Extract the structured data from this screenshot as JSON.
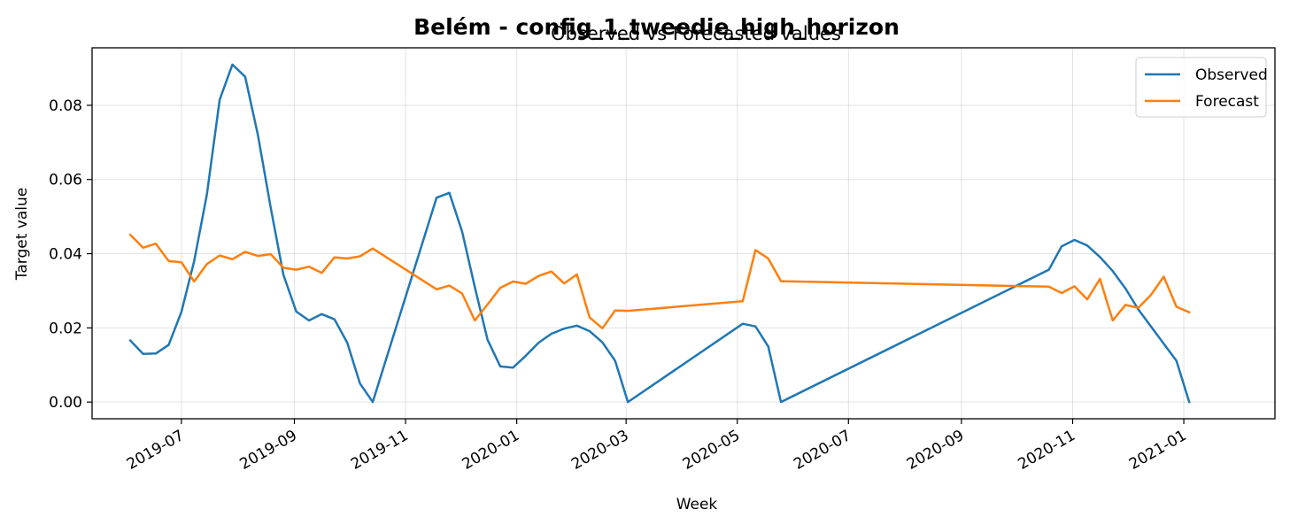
{
  "chart_data": {
    "type": "line",
    "suptitle": "Belém - config_1_tweedie_high_horizon",
    "title": "Observed vs Forecasted values",
    "xlabel": "Week",
    "ylabel": "Target value",
    "ylim": [
      -0.0045,
      0.0955
    ],
    "xlim": [
      "2019-05-13",
      "2021-02-20"
    ],
    "grid": true,
    "legend_position": "top-right",
    "x_ticks": [
      "2019-07-01",
      "2019-09-01",
      "2019-11-01",
      "2020-01-01",
      "2020-03-01",
      "2020-05-01",
      "2020-07-01",
      "2020-09-01",
      "2020-11-01",
      "2021-01-01"
    ],
    "x_tick_labels": [
      "2019-07",
      "2019-09",
      "2019-11",
      "2020-01",
      "2020-03",
      "2020-05",
      "2020-07",
      "2020-09",
      "2020-11",
      "2021-01"
    ],
    "y_ticks": [
      0.0,
      0.02,
      0.04,
      0.06,
      0.08
    ],
    "y_tick_labels": [
      "0.00",
      "0.02",
      "0.04",
      "0.06",
      "0.08"
    ],
    "series": [
      {
        "name": "Observed",
        "color": "#1f77b4",
        "points": [
          [
            "2019-06-03",
            0.0166
          ],
          [
            "2019-06-10",
            0.013
          ],
          [
            "2019-06-17",
            0.0131
          ],
          [
            "2019-06-24",
            0.0154
          ],
          [
            "2019-07-01",
            0.0243
          ],
          [
            "2019-07-08",
            0.038
          ],
          [
            "2019-07-15",
            0.056
          ],
          [
            "2019-07-22",
            0.0815
          ],
          [
            "2019-07-29",
            0.091
          ],
          [
            "2019-08-05",
            0.0877
          ],
          [
            "2019-08-12",
            0.072
          ],
          [
            "2019-08-19",
            0.0525
          ],
          [
            "2019-08-26",
            0.0343
          ],
          [
            "2019-09-02",
            0.0244
          ],
          [
            "2019-09-09",
            0.022
          ],
          [
            "2019-09-16",
            0.0237
          ],
          [
            "2019-09-23",
            0.0223
          ],
          [
            "2019-09-30",
            0.016
          ],
          [
            "2019-10-07",
            0.005
          ],
          [
            "2019-10-14",
            0.0
          ],
          [
            "2019-11-18",
            0.0551
          ],
          [
            "2019-11-25",
            0.0564
          ],
          [
            "2019-12-02",
            0.046
          ],
          [
            "2019-12-09",
            0.031
          ],
          [
            "2019-12-16",
            0.0168
          ],
          [
            "2019-12-23",
            0.0096
          ],
          [
            "2019-12-30",
            0.0093
          ],
          [
            "2020-01-06",
            0.0125
          ],
          [
            "2020-01-13",
            0.016
          ],
          [
            "2020-01-20",
            0.0184
          ],
          [
            "2020-01-27",
            0.0198
          ],
          [
            "2020-02-03",
            0.0206
          ],
          [
            "2020-02-10",
            0.0191
          ],
          [
            "2020-02-17",
            0.0161
          ],
          [
            "2020-02-24",
            0.0111
          ],
          [
            "2020-03-02",
            0.0
          ],
          [
            "2020-05-04",
            0.0211
          ],
          [
            "2020-05-11",
            0.0204
          ],
          [
            "2020-05-18",
            0.015
          ],
          [
            "2020-05-25",
            0.0
          ],
          [
            "2020-10-19",
            0.0357
          ],
          [
            "2020-10-26",
            0.042
          ],
          [
            "2020-11-02",
            0.0437
          ],
          [
            "2020-11-09",
            0.0422
          ],
          [
            "2020-11-16",
            0.0391
          ],
          [
            "2020-11-23",
            0.0353
          ],
          [
            "2020-11-30",
            0.0306
          ],
          [
            "2020-12-07",
            0.025
          ],
          [
            "2020-12-28",
            0.0111
          ],
          [
            "2021-01-04",
            0.0
          ]
        ]
      },
      {
        "name": "Forecast",
        "color": "#ff7f0e",
        "points": [
          [
            "2019-06-03",
            0.0451
          ],
          [
            "2019-06-10",
            0.0416
          ],
          [
            "2019-06-17",
            0.0427
          ],
          [
            "2019-06-24",
            0.038
          ],
          [
            "2019-07-01",
            0.0377
          ],
          [
            "2019-07-08",
            0.0325
          ],
          [
            "2019-07-15",
            0.0372
          ],
          [
            "2019-07-22",
            0.0395
          ],
          [
            "2019-07-29",
            0.0385
          ],
          [
            "2019-08-05",
            0.0405
          ],
          [
            "2019-08-12",
            0.0394
          ],
          [
            "2019-08-19",
            0.0399
          ],
          [
            "2019-08-26",
            0.0362
          ],
          [
            "2019-09-02",
            0.0357
          ],
          [
            "2019-09-09",
            0.0365
          ],
          [
            "2019-09-16",
            0.0348
          ],
          [
            "2019-09-23",
            0.039
          ],
          [
            "2019-09-30",
            0.0387
          ],
          [
            "2019-10-07",
            0.0393
          ],
          [
            "2019-10-14",
            0.0414
          ],
          [
            "2019-11-18",
            0.0304
          ],
          [
            "2019-11-25",
            0.0314
          ],
          [
            "2019-12-02",
            0.0293
          ],
          [
            "2019-12-09",
            0.022
          ],
          [
            "2019-12-16",
            0.0263
          ],
          [
            "2019-12-23",
            0.0308
          ],
          [
            "2019-12-30",
            0.0325
          ],
          [
            "2020-01-06",
            0.0319
          ],
          [
            "2020-01-13",
            0.034
          ],
          [
            "2020-01-20",
            0.0352
          ],
          [
            "2020-01-27",
            0.032
          ],
          [
            "2020-02-03",
            0.0344
          ],
          [
            "2020-02-10",
            0.0228
          ],
          [
            "2020-02-17",
            0.0199
          ],
          [
            "2020-02-24",
            0.0247
          ],
          [
            "2020-03-02",
            0.0246
          ],
          [
            "2020-05-04",
            0.0272
          ],
          [
            "2020-05-11",
            0.041
          ],
          [
            "2020-05-18",
            0.0387
          ],
          [
            "2020-05-25",
            0.0326
          ],
          [
            "2020-10-19",
            0.0311
          ],
          [
            "2020-10-26",
            0.0294
          ],
          [
            "2020-11-02",
            0.0312
          ],
          [
            "2020-11-09",
            0.0277
          ],
          [
            "2020-11-16",
            0.0332
          ],
          [
            "2020-11-23",
            0.022
          ],
          [
            "2020-11-30",
            0.0262
          ],
          [
            "2020-12-07",
            0.0254
          ],
          [
            "2020-12-14",
            0.0289
          ],
          [
            "2020-12-21",
            0.0338
          ],
          [
            "2020-12-28",
            0.0257
          ],
          [
            "2021-01-04",
            0.0242
          ]
        ]
      }
    ]
  }
}
